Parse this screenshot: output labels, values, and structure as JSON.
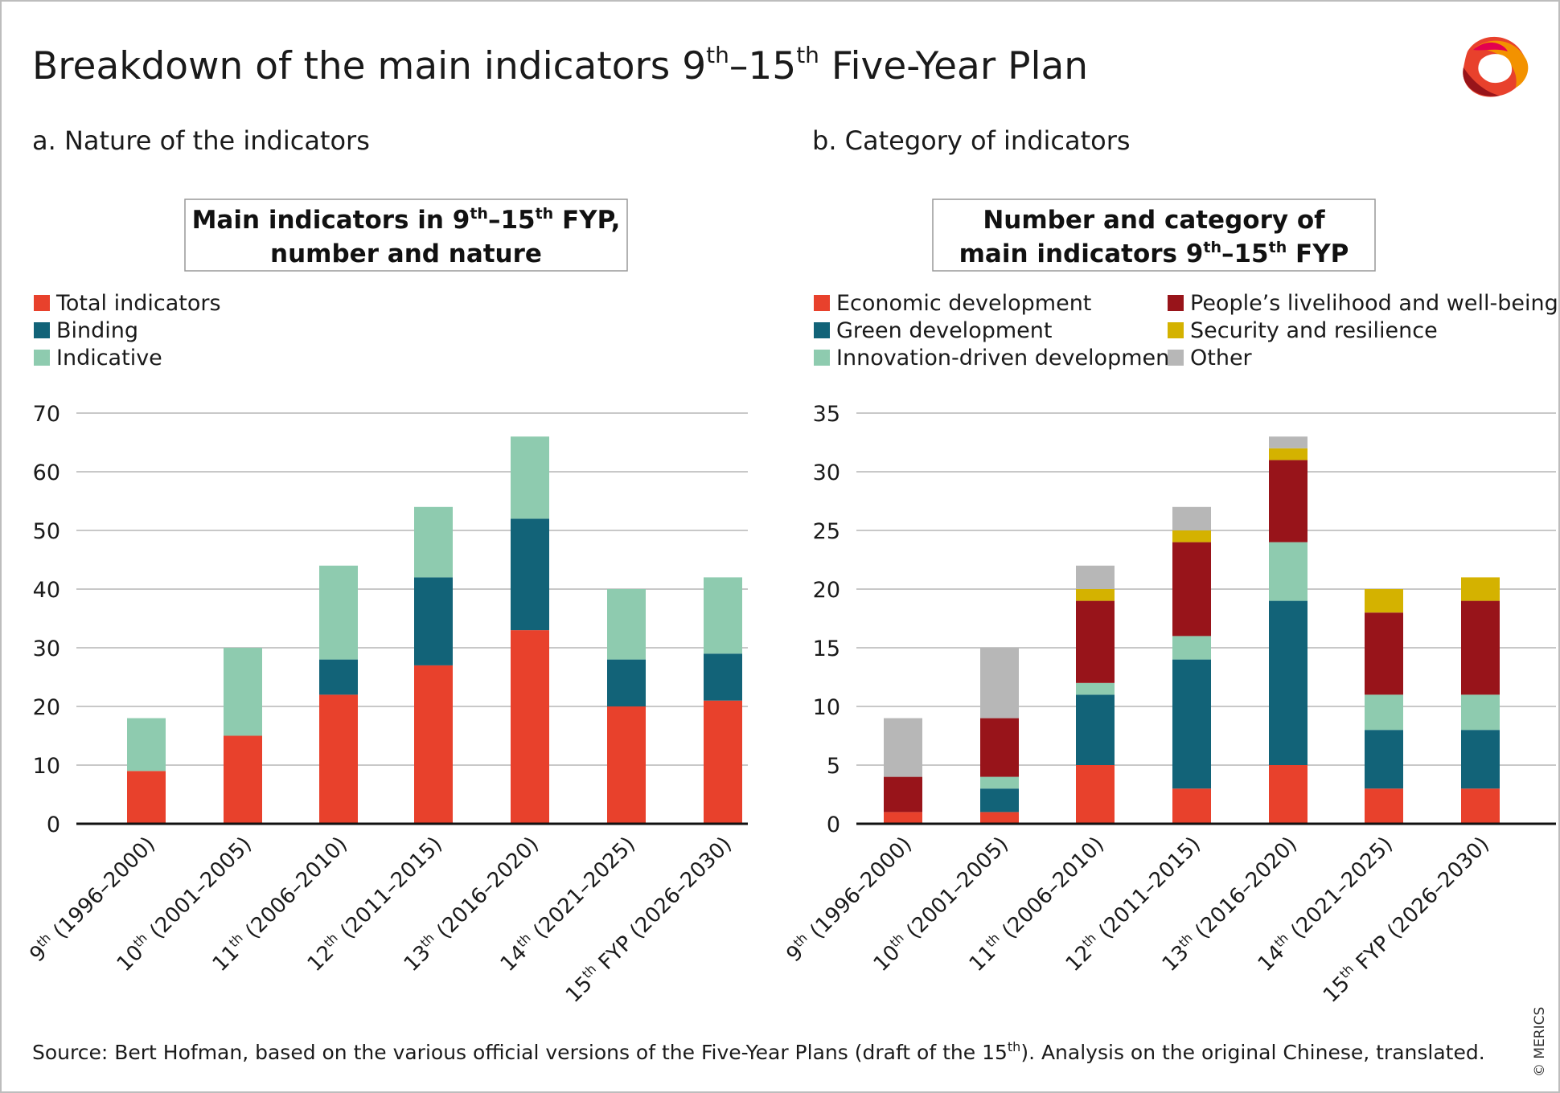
{
  "title": {
    "pre": "Breakdown of the main indicators 9",
    "sup1": "th",
    "mid": "–15",
    "sup2": "th",
    "post": " Five-Year Plan"
  },
  "logo": {
    "name": "MERICS",
    "icon": "merics-ring-logo"
  },
  "copyright": "© MERICS",
  "source": {
    "pre": "Source: Bert Hofman, based on the various official versions of the Five-Year Plans (draft of the 15",
    "sup": "th",
    "post": "). Analysis on the original Chinese, translated."
  },
  "chart_data": [
    {
      "type": "bar",
      "stacked": true,
      "panel_label": "a. Nature of the indicators",
      "title": {
        "line1_pre": "Main indicators in 9",
        "sup1": "th",
        "line1_mid": "–15",
        "sup2": "th",
        "line1_post": " FYP,",
        "line2": "number and nature"
      },
      "categories": [
        {
          "ord": "9",
          "sup": "th",
          "rest": " (1996–2000)"
        },
        {
          "ord": "10",
          "sup": "th",
          "rest": " (2001–2005)"
        },
        {
          "ord": "11",
          "sup": "th",
          "rest": " (2006–2010)"
        },
        {
          "ord": "12",
          "sup": "th",
          "rest": " (2011–2015)"
        },
        {
          "ord": "13",
          "sup": "th",
          "rest": " (2016–2020)"
        },
        {
          "ord": "14",
          "sup": "th",
          "rest": " (2021–2025)"
        },
        {
          "ord": "15",
          "sup": "th",
          "rest": " FYP (2026–2030)"
        }
      ],
      "series": [
        {
          "name": "Total indicators",
          "color": "#e8412c",
          "values": [
            9,
            15,
            22,
            27,
            33,
            20,
            21
          ]
        },
        {
          "name": "Binding",
          "color": "#126378",
          "values": [
            0,
            0,
            6,
            15,
            19,
            8,
            8
          ]
        },
        {
          "name": "Indicative",
          "color": "#8ecbaf",
          "values": [
            9,
            15,
            16,
            12,
            14,
            12,
            13
          ]
        }
      ],
      "ylim": [
        0,
        70
      ],
      "yticks": [
        "0",
        "10",
        "20",
        "30",
        "40",
        "50",
        "60",
        "70"
      ],
      "grid": true,
      "legend": "top-left"
    },
    {
      "type": "bar",
      "stacked": true,
      "panel_label": "b. Category of indicators",
      "title": {
        "line1": "Number and category of",
        "line2_pre": "main indicators 9",
        "sup1": "th",
        "line2_mid": "–15",
        "sup2": "th",
        "line2_post": " FYP"
      },
      "categories": [
        {
          "ord": "9",
          "sup": "th",
          "rest": " (1996–2000)"
        },
        {
          "ord": "10",
          "sup": "th",
          "rest": " (2001–2005)"
        },
        {
          "ord": "11",
          "sup": "th",
          "rest": " (2006–2010)"
        },
        {
          "ord": "12",
          "sup": "th",
          "rest": " (2011–2015)"
        },
        {
          "ord": "13",
          "sup": "th",
          "rest": " (2016–2020)"
        },
        {
          "ord": "14",
          "sup": "th",
          "rest": " (2021–2025)"
        },
        {
          "ord": "15",
          "sup": "th",
          "rest": " FYP (2026–2030)"
        }
      ],
      "series": [
        {
          "name": "Economic development",
          "color": "#e8412c",
          "values": [
            1,
            1,
            5,
            3,
            5,
            3,
            3
          ]
        },
        {
          "name": "Green development",
          "color": "#126378",
          "values": [
            0,
            2,
            6,
            11,
            14,
            5,
            5
          ]
        },
        {
          "name": "Innovation-driven development",
          "color": "#8ecbaf",
          "values": [
            0,
            1,
            1,
            2,
            5,
            3,
            3
          ]
        },
        {
          "name": "People’s livelihood and well-being",
          "color": "#98141a",
          "values": [
            3,
            5,
            7,
            8,
            7,
            7,
            8
          ]
        },
        {
          "name": "Security and resilience",
          "color": "#d4b200",
          "values": [
            0,
            0,
            1,
            1,
            1,
            2,
            2
          ]
        },
        {
          "name": "Other",
          "color": "#b7b7b7",
          "values": [
            5,
            6,
            2,
            2,
            1,
            0,
            0
          ]
        }
      ],
      "ylim": [
        0,
        35
      ],
      "yticks": [
        "0",
        "5",
        "10",
        "15",
        "20",
        "25",
        "30",
        "35"
      ],
      "grid": true,
      "legend": "top, two columns"
    }
  ]
}
